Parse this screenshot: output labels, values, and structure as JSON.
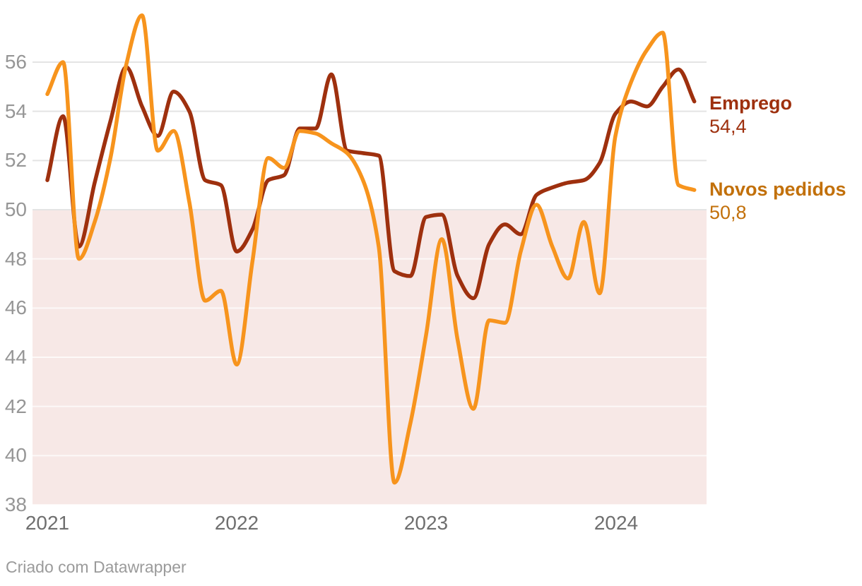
{
  "chart_data": {
    "type": "line",
    "months": [
      "2021-01",
      "2021-02",
      "2021-03",
      "2021-04",
      "2021-05",
      "2021-06",
      "2021-07",
      "2021-08",
      "2021-09",
      "2021-10",
      "2021-11",
      "2021-12",
      "2022-01",
      "2022-02",
      "2022-03",
      "2022-04",
      "2022-05",
      "2022-06",
      "2022-07",
      "2022-08",
      "2022-09",
      "2022-10",
      "2022-11",
      "2022-12",
      "2023-01",
      "2023-02",
      "2023-03",
      "2023-04",
      "2023-05",
      "2023-06",
      "2023-07",
      "2023-08",
      "2023-09",
      "2023-10",
      "2023-11",
      "2023-12",
      "2024-01",
      "2024-02",
      "2024-03",
      "2024-04",
      "2024-05",
      "2024-06"
    ],
    "series": [
      {
        "name": "Emprego",
        "color": "#9E300E",
        "label_color": "#9E300E",
        "end_value_label": "54,4",
        "values": [
          51.2,
          53.8,
          48.5,
          51.1,
          53.6,
          55.8,
          54.2,
          53.0,
          54.8,
          54.0,
          51.2,
          51.0,
          48.3,
          49.2,
          51.2,
          51.4,
          53.3,
          53.3,
          55.5,
          52.4,
          52.3,
          52.2,
          47.5,
          47.3,
          49.7,
          49.8,
          47.3,
          46.4,
          48.6,
          49.4,
          49.0,
          50.6,
          50.9,
          51.1,
          51.2,
          51.9,
          53.9,
          54.4,
          54.2,
          55.0,
          55.7,
          54.4
        ]
      },
      {
        "name": "Novos pedidos",
        "color": "#F7941D",
        "label_color": "#C2700A",
        "end_value_label": "50,8",
        "values": [
          54.7,
          56.0,
          48.0,
          49.5,
          52.1,
          55.9,
          57.9,
          52.4,
          53.2,
          50.3,
          46.3,
          46.7,
          43.7,
          47.9,
          52.1,
          51.7,
          53.2,
          53.1,
          52.7,
          52.3,
          51.2,
          48.5,
          38.9,
          41.3,
          44.9,
          48.8,
          44.7,
          41.9,
          45.5,
          45.4,
          48.3,
          50.2,
          48.5,
          47.2,
          49.5,
          46.6,
          53.0,
          55.2,
          56.5,
          57.2,
          51.0,
          50.8
        ]
      }
    ],
    "x_ticks": [
      "2021",
      "2022",
      "2023",
      "2024"
    ],
    "y_ticks": [
      "56",
      "54",
      "52",
      "50",
      "48",
      "46",
      "44",
      "42",
      "40",
      "38"
    ],
    "y_tick_values": [
      56,
      54,
      52,
      50,
      48,
      46,
      44,
      42,
      40,
      38
    ],
    "ylim": [
      38,
      58
    ],
    "grid": true,
    "legend_position": "right-of-line-ends",
    "shaded_region": {
      "from": 38,
      "to": 50,
      "color": "#F7E8E6"
    },
    "gridline_color": "#E4E4E4",
    "gridline_color_in_shade": "rgba(255,255,255,0.72)"
  },
  "footer": {
    "attribution": "Criado com Datawrapper"
  }
}
